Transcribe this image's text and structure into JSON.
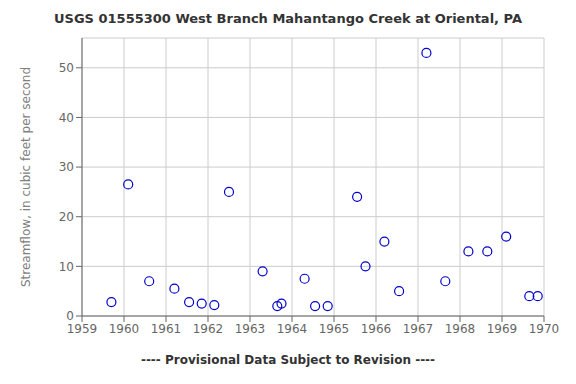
{
  "chart_data": {
    "type": "scatter",
    "title": "USGS 01555300 West Branch Mahantango Creek at Oriental, PA",
    "ylabel": "Streamflow, in cubic feet per second",
    "annotations": [
      "---- Provisional Data Subject to Revision ----"
    ],
    "x": [
      1959.7,
      1960.1,
      1960.6,
      1961.2,
      1961.55,
      1961.85,
      1962.15,
      1962.5,
      1963.3,
      1963.65,
      1963.75,
      1964.3,
      1964.55,
      1964.85,
      1965.55,
      1965.75,
      1966.2,
      1966.55,
      1967.2,
      1967.65,
      1968.2,
      1968.65,
      1969.1,
      1969.65,
      1969.85
    ],
    "values": [
      2.8,
      26.5,
      7.0,
      5.5,
      2.8,
      2.5,
      2.2,
      25.0,
      9.0,
      2.0,
      2.5,
      7.5,
      2.0,
      2.0,
      24.0,
      10.0,
      15.0,
      5.0,
      53.0,
      7.0,
      13.0,
      13.0,
      16.0,
      4.0,
      4.0
    ],
    "color": "#0000cc",
    "marker": "circle",
    "xlim": [
      1959,
      1970
    ],
    "ylim": [
      0,
      56
    ],
    "xticks": [
      1959,
      1960,
      1961,
      1962,
      1963,
      1964,
      1965,
      1966,
      1967,
      1968,
      1969,
      1970
    ],
    "yticks": [
      0,
      10,
      20,
      30,
      40,
      50
    ],
    "grid": true
  }
}
